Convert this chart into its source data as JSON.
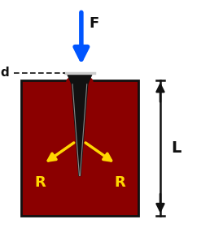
{
  "bg_color": "#ffffff",
  "block_color": "#8B0000",
  "block_border_color": "#111111",
  "screw_color": "#111111",
  "force_arrow_color": "#0055ff",
  "R_arrow_color": "#FFD700",
  "R_label_color": "#FFD700",
  "F_label_color": "#111111",
  "d_label_color": "#111111",
  "L_label_color": "#111111",
  "dim_arrow_color": "#111111",
  "F_label": "F",
  "d_label": "d",
  "L_label": "L",
  "R_label": "R"
}
